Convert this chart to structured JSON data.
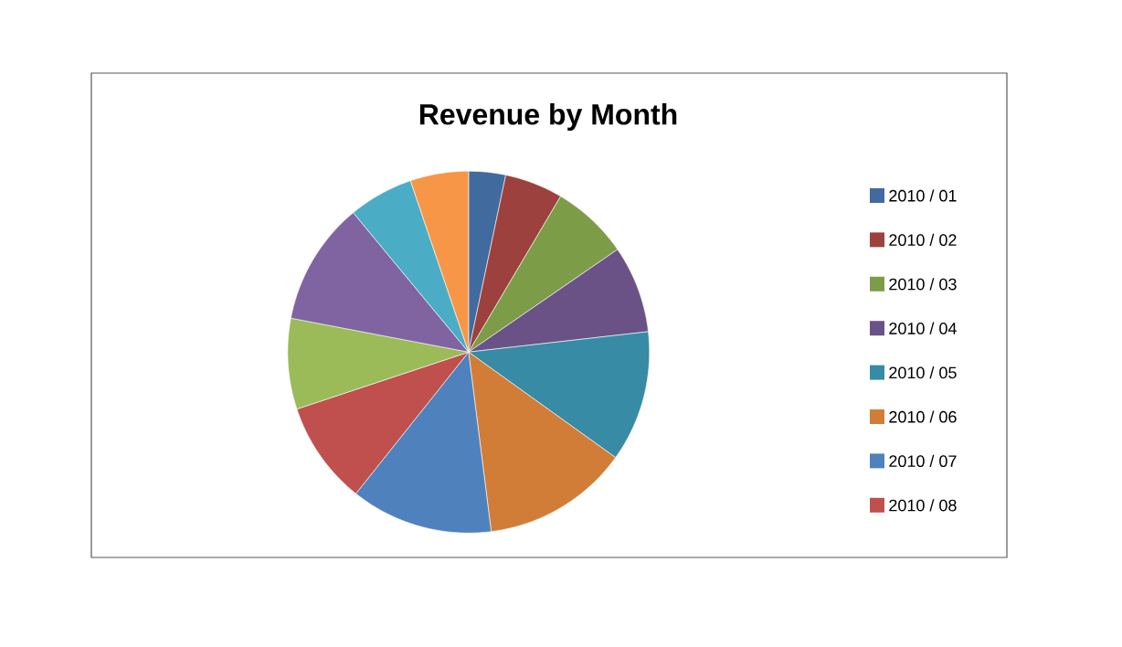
{
  "chart_data": {
    "type": "pie",
    "title": "Revenue by Month",
    "categories": [
      "2010 / 01",
      "2010 / 02",
      "2010 / 03",
      "2010 / 04",
      "2010 / 05",
      "2010 / 06",
      "2010 / 07",
      "2010 / 08",
      null,
      null,
      null,
      null
    ],
    "values": [
      3.3,
      5.2,
      6.9,
      7.8,
      11.7,
      13.1,
      12.7,
      9.2,
      8.1,
      11.0,
      5.8,
      5.2
    ],
    "colors": [
      "#416a9f",
      "#9c413d",
      "#7d9c48",
      "#6a5287",
      "#378ba5",
      "#d17d37",
      "#4f81bd",
      "#c0504d",
      "#9bbb59",
      "#8064a2",
      "#4bacc6",
      "#f79646"
    ],
    "legend": "right"
  }
}
